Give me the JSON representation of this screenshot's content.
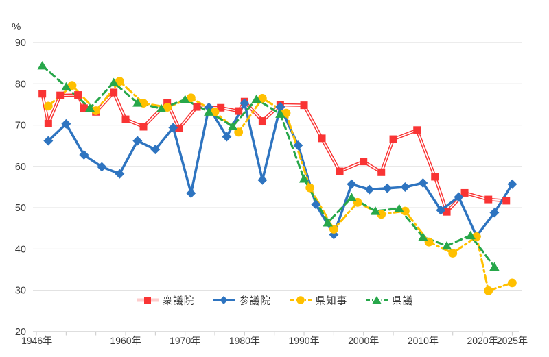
{
  "chart_data": {
    "type": "line",
    "title": "",
    "ylabel": "%",
    "ylim": [
      20,
      90
    ],
    "y_ticks": [
      20,
      30,
      40,
      50,
      60,
      70,
      80,
      90
    ],
    "x_minor_tick_years": [
      1945,
      1950,
      1955,
      1960,
      1965,
      1970,
      1975,
      1980,
      1985,
      1990,
      1995,
      2000,
      2005,
      2010,
      2015,
      2020,
      2025
    ],
    "x_labels": [
      {
        "year": 1946,
        "label": "1946年"
      },
      {
        "year": 1960,
        "label": "1960年"
      },
      {
        "year": 1970,
        "label": "1970年"
      },
      {
        "year": 1980,
        "label": "1980年"
      },
      {
        "year": 1990,
        "label": "1990年"
      },
      {
        "year": 2000,
        "label": "2000年"
      },
      {
        "year": 2010,
        "label": "2010年"
      },
      {
        "year": 2020,
        "label": "2020年"
      },
      {
        "year": 2025,
        "label": "2025年"
      }
    ],
    "grid": "horizontal",
    "legend_position": "bottom-center",
    "series": [
      {
        "id": "shugiin",
        "name": "衆議院",
        "color": "#f93434",
        "marker": "square",
        "line_style": "double-solid",
        "points": [
          [
            1946,
            77.6
          ],
          [
            1947,
            70.4
          ],
          [
            1949,
            77.2
          ],
          [
            1952,
            77.3
          ],
          [
            1953,
            74.1
          ],
          [
            1955,
            73.2
          ],
          [
            1958,
            77.9
          ],
          [
            1960,
            71.4
          ],
          [
            1963,
            69.6
          ],
          [
            1967,
            75.4
          ],
          [
            1969,
            69.2
          ],
          [
            1972,
            74.4
          ],
          [
            1976,
            74.2
          ],
          [
            1979,
            73.4
          ],
          [
            1980,
            75.7
          ],
          [
            1983,
            71.0
          ],
          [
            1986,
            74.9
          ],
          [
            1990,
            74.8
          ],
          [
            1993,
            66.8
          ],
          [
            1996,
            58.8
          ],
          [
            2000,
            61.2
          ],
          [
            2003,
            58.6
          ],
          [
            2005,
            66.6
          ],
          [
            2009,
            68.8
          ],
          [
            2012,
            57.5
          ],
          [
            2014,
            49.0
          ],
          [
            2017,
            53.6
          ],
          [
            2021,
            52.0
          ],
          [
            2024,
            51.7
          ]
        ]
      },
      {
        "id": "sangiin",
        "name": "参議院",
        "color": "#2e74c0",
        "marker": "diamond",
        "line_style": "solid",
        "points": [
          [
            1947,
            66.2
          ],
          [
            1950,
            70.3
          ],
          [
            1953,
            62.8
          ],
          [
            1956,
            59.9
          ],
          [
            1959,
            58.2
          ],
          [
            1962,
            66.2
          ],
          [
            1965,
            64.1
          ],
          [
            1968,
            69.4
          ],
          [
            1971,
            53.5
          ],
          [
            1974,
            74.3
          ],
          [
            1977,
            67.2
          ],
          [
            1980,
            75.3
          ],
          [
            1983,
            56.7
          ],
          [
            1986,
            74.4
          ],
          [
            1989,
            65.1
          ],
          [
            1992,
            50.8
          ],
          [
            1995,
            43.5
          ],
          [
            1998,
            55.7
          ],
          [
            2001,
            54.4
          ],
          [
            2004,
            54.7
          ],
          [
            2007,
            55.0
          ],
          [
            2010,
            56.0
          ],
          [
            2013,
            49.4
          ],
          [
            2016,
            52.6
          ],
          [
            2019,
            43.1
          ],
          [
            2022,
            48.8
          ],
          [
            2025,
            55.7
          ]
        ]
      },
      {
        "id": "kenchiji",
        "name": "県知事",
        "color": "#ffc000",
        "marker": "circle",
        "line_style": "dash-dot",
        "points": [
          [
            1947,
            74.6
          ],
          [
            1951,
            79.6
          ],
          [
            1955,
            73.5
          ],
          [
            1959,
            80.6
          ],
          [
            1963,
            75.3
          ],
          [
            1967,
            74.3
          ],
          [
            1971,
            76.6
          ],
          [
            1975,
            73.2
          ],
          [
            1979,
            68.3
          ],
          [
            1983,
            76.5
          ],
          [
            1987,
            72.9
          ],
          [
            1991,
            54.8
          ],
          [
            1995,
            44.8
          ],
          [
            1999,
            51.3
          ],
          [
            2003,
            48.4
          ],
          [
            2007,
            49.2
          ],
          [
            2011,
            41.7
          ],
          [
            2015,
            39.0
          ],
          [
            2019,
            43.0
          ],
          [
            2021,
            29.9
          ],
          [
            2025,
            31.8
          ]
        ]
      },
      {
        "id": "kengi",
        "name": "県議",
        "color": "#27a74a",
        "marker": "triangle",
        "line_style": "dashed",
        "points": [
          [
            1946,
            84.4
          ],
          [
            1950,
            79.3
          ],
          [
            1954,
            74.1
          ],
          [
            1958,
            80.3
          ],
          [
            1962,
            75.4
          ],
          [
            1966,
            74.0
          ],
          [
            1970,
            76.2
          ],
          [
            1974,
            73.2
          ],
          [
            1978,
            69.7
          ],
          [
            1982,
            76.3
          ],
          [
            1986,
            72.7
          ],
          [
            1990,
            57.0
          ],
          [
            1994,
            46.4
          ],
          [
            1998,
            52.5
          ],
          [
            2002,
            49.2
          ],
          [
            2006,
            49.8
          ],
          [
            2010,
            42.9
          ],
          [
            2014,
            40.8
          ],
          [
            2018,
            43.3
          ],
          [
            2022,
            35.7
          ]
        ]
      }
    ],
    "style": {
      "grid_color": "#d9d9d9",
      "axis_color": "#c9c9c9",
      "label_color": "#3a3a3a"
    }
  }
}
